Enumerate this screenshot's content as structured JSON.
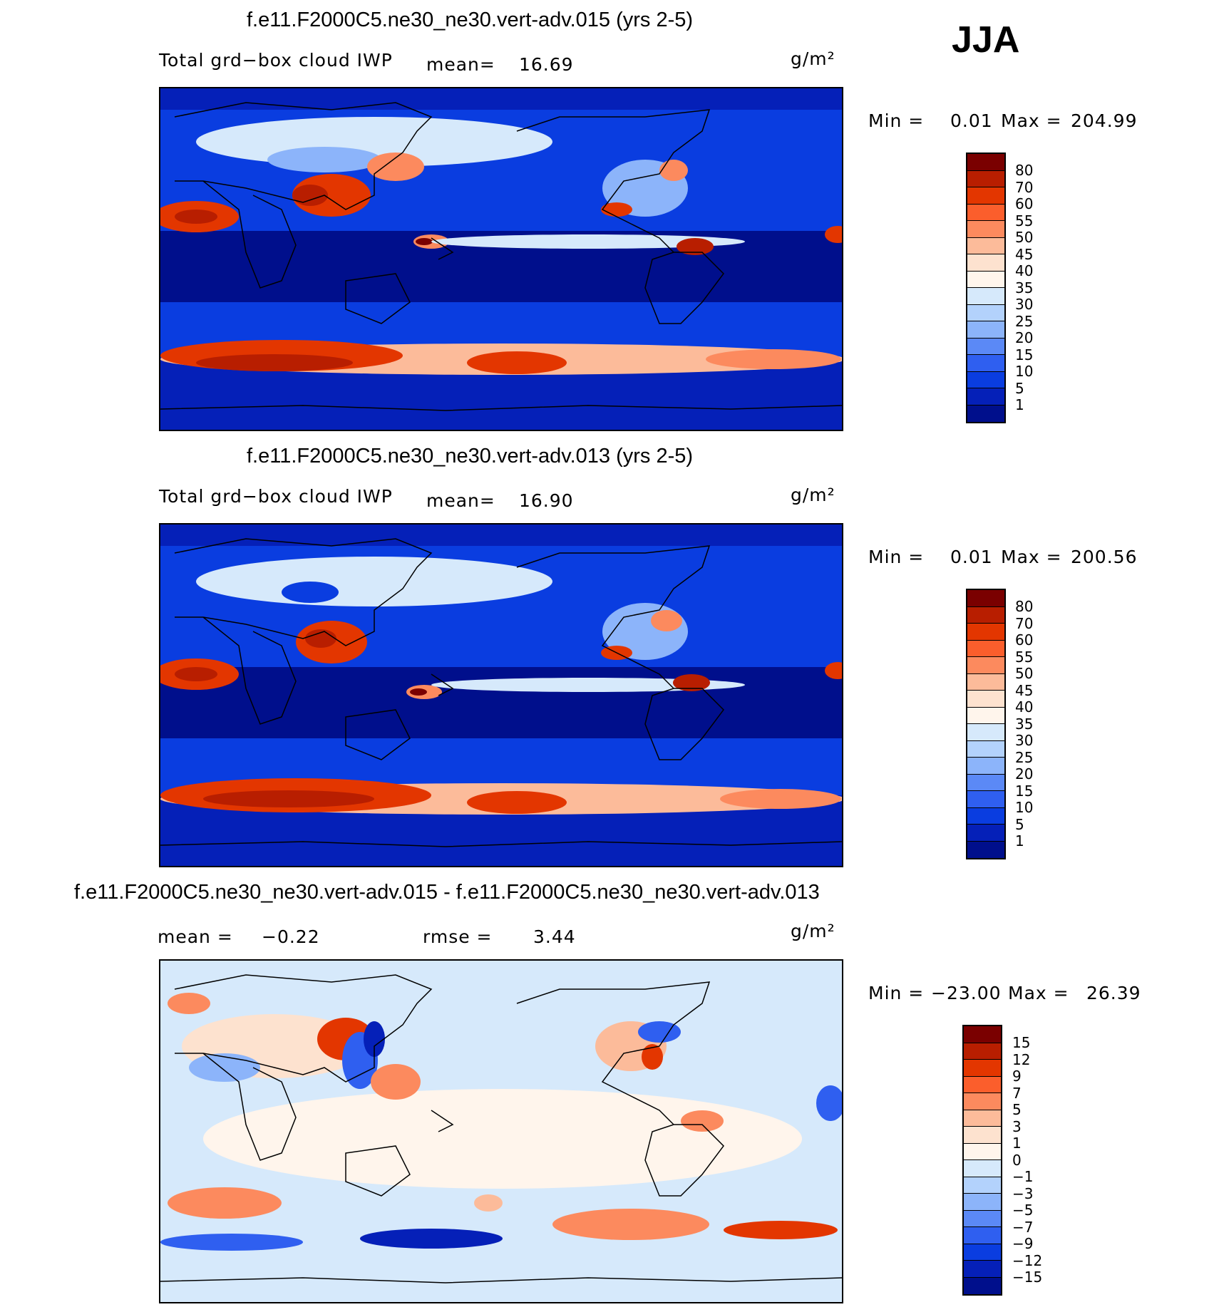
{
  "season": "JJA",
  "units": "g/m²",
  "panels": [
    {
      "title": "f.e11.F2000C5.ne30_ne30.vert-adv.015 (yrs 2-5)",
      "variable": "Total grd−box cloud IWP",
      "mean_label": "mean=",
      "mean_value": "16.69",
      "min_label": "Min =",
      "min_value": "0.01",
      "max_label": "Max =",
      "max_value": "204.99"
    },
    {
      "title": "f.e11.F2000C5.ne30_ne30.vert-adv.013 (yrs 2-5)",
      "variable": "Total grd−box cloud IWP",
      "mean_label": "mean=",
      "mean_value": "16.90",
      "min_label": "Min =",
      "min_value": "0.01",
      "max_label": "Max =",
      "max_value": "200.56"
    },
    {
      "title": "f.e11.F2000C5.ne30_ne30.vert-adv.015 - f.e11.F2000C5.ne30_ne30.vert-adv.013",
      "mean_label": "mean =",
      "mean_value": "−0.22",
      "rmse_label": "rmse =",
      "rmse_value": "3.44",
      "min_label": "Min =",
      "min_value": "−23.00",
      "max_label": "Max =",
      "max_value": "26.39"
    }
  ],
  "colorbars": {
    "absolute": {
      "labels": [
        "80",
        "70",
        "60",
        "55",
        "50",
        "45",
        "40",
        "35",
        "30",
        "25",
        "20",
        "15",
        "10",
        "5",
        "1"
      ],
      "colors": [
        "#7a0000",
        "#b81e00",
        "#e33600",
        "#fb5e2c",
        "#fc8a5e",
        "#fcbb9a",
        "#fde2cf",
        "#fff5ec",
        "#d6e9fb",
        "#b3d2fc",
        "#8cb4fa",
        "#5b89f6",
        "#2f5ff0",
        "#0a3de0",
        "#0520b8",
        "#000f8c"
      ]
    },
    "difference": {
      "labels": [
        "15",
        "12",
        "9",
        "7",
        "5",
        "3",
        "1",
        "0",
        "−1",
        "−3",
        "−5",
        "−7",
        "−9",
        "−12",
        "−15"
      ],
      "colors": [
        "#7a0000",
        "#b81e00",
        "#e33600",
        "#fb5e2c",
        "#fc8a5e",
        "#fcbb9a",
        "#fde2cf",
        "#fff5ec",
        "#d6e9fb",
        "#b3d2fc",
        "#8cb4fa",
        "#5b89f6",
        "#2f5ff0",
        "#0a3de0",
        "#0520b8",
        "#000f8c"
      ]
    }
  }
}
